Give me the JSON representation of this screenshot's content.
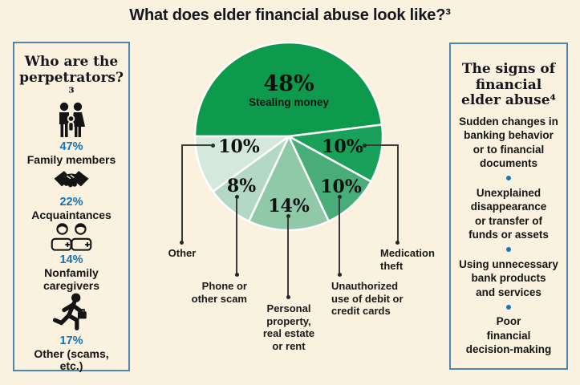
{
  "page": {
    "title": "What does elder financial abuse look like?³",
    "background": "#faf1de",
    "text_color": "#1a1a1a",
    "accent_blue": "#1473b4",
    "panel_border_blue": "#4d86ad",
    "leader_line_color": "#3a3a3a"
  },
  "left_panel": {
    "title": "Who are the perpetrators?³",
    "items": [
      {
        "icon": "family-icon",
        "pct": "47%",
        "label": "Family members"
      },
      {
        "icon": "handshake-icon",
        "pct": "22%",
        "label": "Acquaintances"
      },
      {
        "icon": "caregivers-icon",
        "pct": "14%",
        "label": "Nonfamily caregivers"
      },
      {
        "icon": "runner-icon",
        "pct": "17%",
        "label": "Other (scams, etc.)"
      }
    ]
  },
  "right_panel": {
    "title": "The signs of financial elder abuse⁴",
    "items": [
      "Sudden changes in\nbanking behavior\nor to financial\ndocuments",
      "Unexplained\ndisappearance\nor transfer of\nfunds or assets",
      "Using unnecessary\nbank products\nand services",
      "Poor\nfinancial\ndecision-making"
    ]
  },
  "chart_data": {
    "type": "pie",
    "title": "What does elder financial abuse look like?³",
    "start_angle_deg": 180,
    "direction": "clockwise",
    "radius_px": 117,
    "slices": [
      {
        "id": "stealing-money",
        "label": "Stealing money",
        "value": 48,
        "pct_label": "48%",
        "color": "#0d9a4d"
      },
      {
        "id": "medication-theft",
        "label": "Medication theft",
        "value": 10,
        "pct_label": "10%",
        "color": "#1aa159"
      },
      {
        "id": "unauthorized-debit-credit",
        "label": "Unauthorized use of debit or credit cards",
        "value": 10,
        "pct_label": "10%",
        "color": "#49ad7a"
      },
      {
        "id": "personal-property",
        "label": "Personal property, real estate or rent",
        "value": 14,
        "pct_label": "14%",
        "color": "#8fc9a8"
      },
      {
        "id": "phone-other-scam",
        "label": "Phone or other scam",
        "value": 8,
        "pct_label": "8%",
        "color": "#b3d8c4"
      },
      {
        "id": "other",
        "label": "Other",
        "value": 10,
        "pct_label": "10%",
        "color": "#d4e8db"
      }
    ]
  }
}
